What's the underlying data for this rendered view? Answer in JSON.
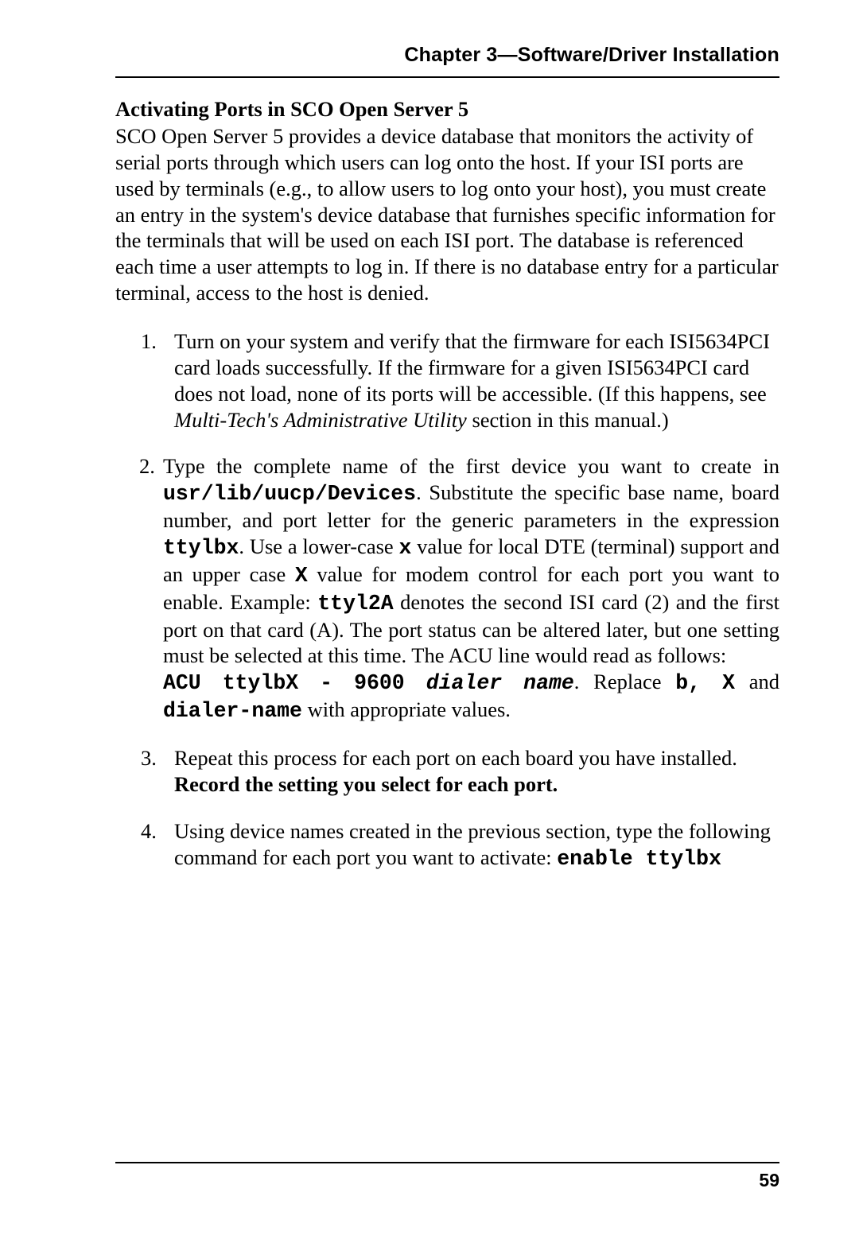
{
  "header": {
    "chapter_label": "Chapter 3—Software/Driver Installation"
  },
  "section": {
    "title": "Activating Ports in SCO Open Server 5",
    "intro": "SCO Open Server 5 provides a device database that monitors the activity of serial ports through which users can log onto the host. If your ISI ports are used by terminals (e.g., to allow users to log onto your host), you must create an entry in the system's device database that furnishes specific information for the terminals that will be used on each ISI port. The database is referenced each time a user attempts to log in. If there is no database entry for a particular terminal, access to the host is denied."
  },
  "steps": {
    "s1": {
      "pre": "Turn on your system and verify that the firmware for each ISI5634PCI card loads successfully.  If the firmware for a given ISI5634PCI card does not load, none of its ports will be accessible. (If this happens, see  ",
      "italic": "Multi-Tech's Administrative Utility",
      "post": " section in this manual.)"
    },
    "s2": {
      "a": "Type the complete name of the first device you want to create in ",
      "code1": "usr/lib/uucp/Devices",
      "b": ". Substitute the specific base name, board number, and port letter for the generic parameters in the expression ",
      "code2": "ttylbx",
      "c": ".  Use a lower-case ",
      "code3": "x",
      "d": " value for local DTE (terminal) support and an upper case ",
      "code4": "X",
      "e": " value for modem control for each port you want to enable.  Example:  ",
      "code5": "ttyl2A",
      "f": " denotes the second ISI card (2) and the first port on that card (A).  The port status can be altered later, but one setting must be selected at this time.  The ACU line would read as follows:",
      "acu1": "ACU  ttylbX  -  9600 ",
      "acu_dialer": "dialer  name",
      "acu2": ".  Replace ",
      "acu_bx": "b,  X",
      "g": " and ",
      "code6": "dialer-name",
      "h": " with appropriate values."
    },
    "s3": {
      "a": "Repeat this process for each port on each board you have installed.  ",
      "bold": "Record the setting you select for each port."
    },
    "s4": {
      "a": "Using device names created in the previous section, type the following command for each port you want to activate: ",
      "code1": "enable ttylbx"
    }
  },
  "footer": {
    "page_number": "59"
  }
}
